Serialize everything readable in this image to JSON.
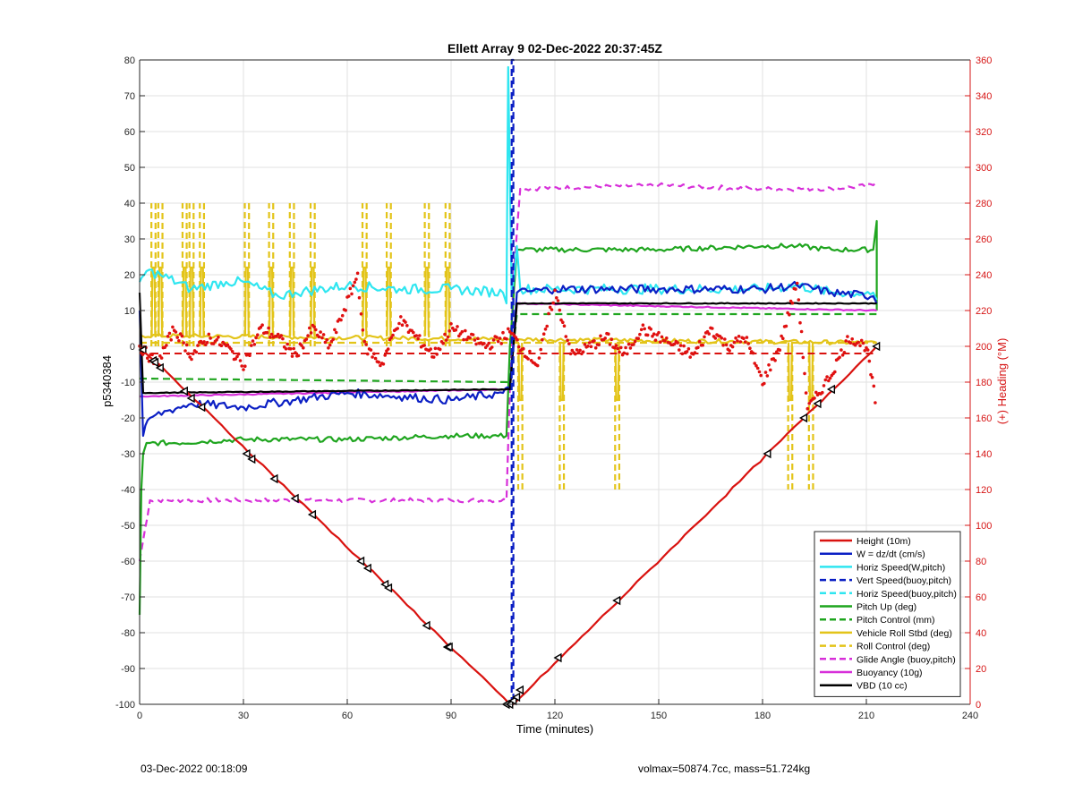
{
  "footer": {
    "timestamp": "03-Dec-2022 00:18:09",
    "summary": "volmax=50874.7cc, mass=51.724kg"
  },
  "chart_data": {
    "type": "line",
    "title": "Ellett Array 9 02-Dec-2022 20:37:45Z",
    "xlabel": "Time (minutes)",
    "ylabel_left": "p5340384",
    "ylabel_right": "(+) Heading (°M)",
    "xlim": [
      0,
      240
    ],
    "ylim_left": [
      -100,
      80
    ],
    "ylim_right": [
      0,
      360
    ],
    "xticks": [
      "0",
      "30",
      "60",
      "90",
      "120",
      "150",
      "180",
      "210",
      "240"
    ],
    "yticks_left": [
      "-100",
      "-90",
      "-80",
      "-70",
      "-60",
      "-50",
      "-40",
      "-30",
      "-20",
      "-10",
      "0",
      "10",
      "20",
      "30",
      "40",
      "50",
      "60",
      "70",
      "80"
    ],
    "yticks_right": [
      "0",
      "20",
      "40",
      "60",
      "80",
      "100",
      "120",
      "140",
      "160",
      "180",
      "200",
      "220",
      "240",
      "260",
      "280",
      "300",
      "320",
      "340",
      "360"
    ],
    "grid": true,
    "legend_position": "bottom-right",
    "colors": {
      "red": "#d9120f",
      "blue": "#0b1fc4",
      "cyan": "#2fe6f0",
      "green": "#1fa51f",
      "yellow": "#e3c419",
      "magenta": "#d72fd9",
      "black": "#000000",
      "heading": "#e01010"
    },
    "series": [
      {
        "name": "Height (10m)",
        "color": "#d9120f",
        "style": "solid",
        "x": [
          0,
          107,
          108,
          213
        ],
        "y": [
          0,
          -100,
          -100,
          0
        ]
      },
      {
        "name": "W = dz/dt (cm/s)",
        "color": "#0b1fc4",
        "style": "solid",
        "x": [
          0,
          1,
          3,
          8,
          15,
          30,
          45,
          60,
          75,
          90,
          105,
          107,
          109,
          120,
          150,
          180,
          190,
          200,
          212,
          213
        ],
        "y": [
          10,
          -25,
          -20,
          -18,
          -16,
          -17,
          -15,
          -13,
          -14,
          -15,
          -13,
          -12,
          15,
          16,
          16,
          16,
          17,
          15,
          14,
          12
        ]
      },
      {
        "name": "Horiz Speed(W,pitch)",
        "color": "#2fe6f0",
        "style": "solid",
        "x": [
          0,
          2,
          6,
          15,
          25,
          30,
          40,
          45,
          60,
          75,
          90,
          105,
          106,
          106.5,
          107.5,
          109,
          110,
          120,
          150,
          180,
          190,
          200,
          212,
          213
        ],
        "y": [
          18,
          21,
          20,
          16,
          18,
          18,
          14,
          15,
          17,
          16,
          16,
          15,
          12,
          78,
          14,
          28,
          16,
          16,
          16,
          16,
          17,
          15,
          15,
          13
        ]
      },
      {
        "name": "Vert Speed(buoy,pitch)",
        "color": "#0b1fc4",
        "style": "dashed",
        "x": [
          107.5,
          107.5,
          108,
          108
        ],
        "y": [
          -100,
          80,
          80,
          -100
        ]
      },
      {
        "name": "Horiz Speed(buoy,pitch)",
        "color": "#2fe6f0",
        "style": "dashed",
        "x": [],
        "y": []
      },
      {
        "name": "Pitch Up (deg)",
        "color": "#1fa51f",
        "style": "solid",
        "x": [
          0,
          0.5,
          1,
          2,
          3,
          10,
          30,
          60,
          90,
          106,
          107,
          109,
          110,
          150,
          180,
          190,
          200,
          212,
          213,
          213
        ],
        "y": [
          -75,
          -40,
          -30,
          -27,
          -27,
          -27,
          -26,
          -26,
          -25,
          -25,
          0,
          27,
          27,
          27,
          28,
          28,
          27,
          27,
          35,
          10
        ]
      },
      {
        "name": "Pitch Control (mm)",
        "color": "#1fa51f",
        "style": "dashed",
        "x": [
          0,
          107,
          109,
          213
        ],
        "y": [
          -9,
          -10,
          9,
          9
        ]
      },
      {
        "name": "Vehicle Roll Stbd (deg)",
        "color": "#e3c419",
        "style": "solid",
        "x": [
          0,
          213
        ],
        "y": [
          3,
          1
        ]
      },
      {
        "name": "Roll Control (deg)",
        "color": "#e3c419",
        "style": "dashed",
        "x": [
          0,
          107,
          109,
          213
        ],
        "y": [
          1,
          1,
          1,
          1
        ]
      },
      {
        "name": "Glide Angle (buoy,pitch)",
        "color": "#d72fd9",
        "style": "dashed",
        "x": [
          0,
          3,
          30,
          60,
          90,
          106,
          108,
          110,
          150,
          180,
          200,
          212,
          213
        ],
        "y": [
          -60,
          -43,
          -43,
          -43,
          -43,
          -43,
          20,
          44,
          45,
          44,
          44,
          45,
          46
        ]
      },
      {
        "name": "Buoyancy (10g)",
        "color": "#d72fd9",
        "style": "solid",
        "x": [
          0,
          107,
          109,
          213
        ],
        "y": [
          -14,
          -12,
          12,
          10
        ]
      },
      {
        "name": "VBD (10 cc)",
        "color": "#000000",
        "style": "solid",
        "x": [
          0,
          1,
          3,
          107,
          109,
          213
        ],
        "y": [
          15,
          -13,
          -13,
          -12,
          12,
          12
        ]
      }
    ],
    "heading": {
      "axis": "right",
      "color": "#e01010",
      "style": "points",
      "x": [
        0,
        5,
        10,
        15,
        20,
        25,
        30,
        35,
        40,
        45,
        50,
        55,
        60,
        63,
        65,
        70,
        75,
        80,
        85,
        90,
        95,
        100,
        105,
        107,
        110,
        115,
        120,
        125,
        130,
        135,
        140,
        145,
        150,
        155,
        160,
        165,
        170,
        175,
        180,
        185,
        190,
        193,
        195,
        200,
        205,
        210,
        213
      ],
      "y": [
        200,
        190,
        210,
        195,
        205,
        200,
        190,
        210,
        205,
        195,
        210,
        200,
        225,
        240,
        200,
        190,
        215,
        205,
        195,
        210,
        205,
        200,
        205,
        208,
        200,
        190,
        230,
        195,
        200,
        205,
        195,
        210,
        205,
        200,
        195,
        210,
        200,
        205,
        180,
        200,
        236,
        165,
        170,
        185,
        205,
        200,
        165
      ]
    },
    "yellow_spikes": {
      "x": [
        4,
        6,
        13,
        15,
        18,
        31,
        38,
        44,
        50,
        65,
        72,
        83,
        89
      ],
      "roll_control_upper": 40,
      "roll_control_lower": 0,
      "vehicle_roll_upper": 22,
      "vehicle_roll_lower": 3,
      "ascent_spike_x": [
        110,
        122,
        138,
        188,
        194
      ],
      "ascent_roll_control_lower": -40,
      "ascent_vehicle_roll_lower": -15
    },
    "markers": {
      "x": [
        1,
        4,
        4.5,
        6,
        13,
        15,
        18,
        31,
        32.5,
        39,
        45,
        50,
        64,
        66,
        71,
        72,
        83,
        89,
        89.5,
        106,
        107,
        108,
        109,
        110,
        121,
        138,
        181.5,
        192,
        196,
        200,
        213
      ],
      "y": [
        -1,
        -4,
        -4.5,
        -6,
        -12.5,
        -14.5,
        -17,
        -30,
        -31.5,
        -37,
        -42.5,
        -47,
        -60,
        -62,
        -66.5,
        -67.5,
        -78,
        -84,
        -84,
        -100,
        -100,
        -99,
        -98,
        -96,
        -87,
        -71,
        -30,
        -20,
        -16,
        -12,
        0
      ]
    }
  }
}
